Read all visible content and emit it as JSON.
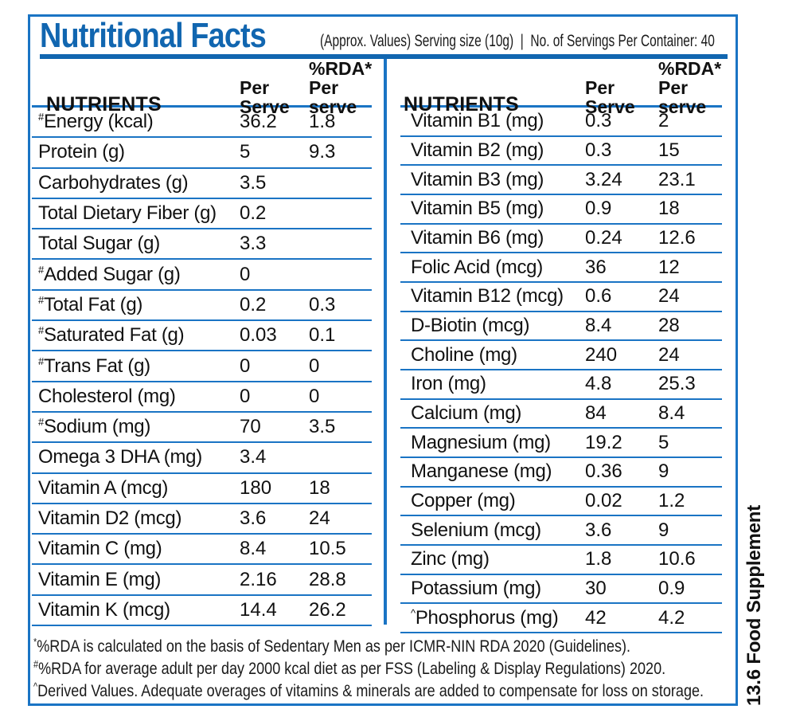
{
  "header": {
    "title": "Nutritional Facts",
    "subtitle": "(Approx. Values) Serving size (10g)  |  No. of Servings Per Container: 40"
  },
  "columns": {
    "nutrients": "NUTRIENTS",
    "serve_line1": "Per",
    "serve_line2": "Serve",
    "rda_line1": "%RDA*",
    "rda_line2": "Per serve"
  },
  "tables": {
    "left": {
      "rows": [
        {
          "prefix": "#",
          "name": "Energy (kcal)",
          "serve": "36.2",
          "rda": "1.8"
        },
        {
          "name": "Protein (g)",
          "serve": "5",
          "rda": "9.3"
        },
        {
          "name": "Carbohydrates (g)",
          "serve": "3.5",
          "rda": ""
        },
        {
          "name": "Total Dietary Fiber (g)",
          "serve": "0.2",
          "rda": ""
        },
        {
          "name": "Total Sugar (g)",
          "serve": "3.3",
          "rda": ""
        },
        {
          "prefix": "#",
          "name": "Added Sugar (g)",
          "serve": "0",
          "rda": ""
        },
        {
          "prefix": "#",
          "name": "Total Fat (g)",
          "serve": "0.2",
          "rda": "0.3"
        },
        {
          "prefix": "#",
          "name": "Saturated Fat (g)",
          "serve": "0.03",
          "rda": "0.1"
        },
        {
          "prefix": "#",
          "name": "Trans Fat (g)",
          "serve": "0",
          "rda": "0"
        },
        {
          "name": "Cholesterol (mg)",
          "serve": "0",
          "rda": "0"
        },
        {
          "prefix": "#",
          "name": "Sodium (mg)",
          "serve": "70",
          "rda": "3.5"
        },
        {
          "name": "Omega 3 DHA (mg)",
          "serve": "3.4",
          "rda": ""
        },
        {
          "name": "Vitamin A (mcg)",
          "serve": "180",
          "rda": "18"
        },
        {
          "name": "Vitamin D2 (mcg)",
          "serve": "3.6",
          "rda": "24"
        },
        {
          "name": "Vitamin C (mg)",
          "serve": "8.4",
          "rda": "10.5"
        },
        {
          "name": "Vitamin E (mg)",
          "serve": "2.16",
          "rda": "28.8"
        },
        {
          "name": "Vitamin K (mcg)",
          "serve": "14.4",
          "rda": "26.2"
        }
      ]
    },
    "right": {
      "rows": [
        {
          "name": "Vitamin B1 (mg)",
          "serve": "0.3",
          "rda": "2"
        },
        {
          "name": "Vitamin B2 (mg)",
          "serve": "0.3",
          "rda": "15"
        },
        {
          "name": "Vitamin B3 (mg)",
          "serve": "3.24",
          "rda": "23.1"
        },
        {
          "name": "Vitamin B5 (mg)",
          "serve": "0.9",
          "rda": "18"
        },
        {
          "name": "Vitamin B6 (mg)",
          "serve": "0.24",
          "rda": "12.6"
        },
        {
          "name": "Folic Acid (mcg)",
          "serve": "36",
          "rda": "12"
        },
        {
          "name": "Vitamin B12 (mcg)",
          "serve": "0.6",
          "rda": "24"
        },
        {
          "name": "D-Biotin (mcg)",
          "serve": "8.4",
          "rda": "28"
        },
        {
          "name": "Choline (mg)",
          "serve": "240",
          "rda": "24"
        },
        {
          "name": "Iron (mg)",
          "serve": "4.8",
          "rda": "25.3"
        },
        {
          "name": "Calcium (mg)",
          "serve": "84",
          "rda": "8.4"
        },
        {
          "name": "Magnesium (mg)",
          "serve": "19.2",
          "rda": "5"
        },
        {
          "name": "Manganese (mg)",
          "serve": "0.36",
          "rda": "9"
        },
        {
          "name": "Copper (mg)",
          "serve": "0.02",
          "rda": "1.2"
        },
        {
          "name": "Selenium (mcg)",
          "serve": "3.6",
          "rda": "9"
        },
        {
          "name": "Zinc (mg)",
          "serve": "1.8",
          "rda": "10.6"
        },
        {
          "name": "Potassium (mg)",
          "serve": "30",
          "rda": "0.9"
        },
        {
          "prefix": "^",
          "name": "Phosphorus (mg)",
          "serve": "42",
          "rda": "4.2"
        }
      ]
    }
  },
  "footnotes": [
    {
      "marker": "*",
      "text": "%RDA is calculated on the basis of Sedentary Men as per ICMR-NIN RDA 2020 (Guidelines)."
    },
    {
      "marker": "#",
      "text": "%RDA for average adult per day 2000 kcal diet as per FSS (Labeling & Display Regulations) 2020."
    },
    {
      "marker": "^",
      "text": "Derived Values. Adequate overages of vitamins & minerals are added to compensate for loss on storage."
    }
  ],
  "side_label": "13.6 Food Supplement",
  "colors": {
    "blue": "#1166b0",
    "line": "#1a74c4",
    "text": "#111111"
  }
}
